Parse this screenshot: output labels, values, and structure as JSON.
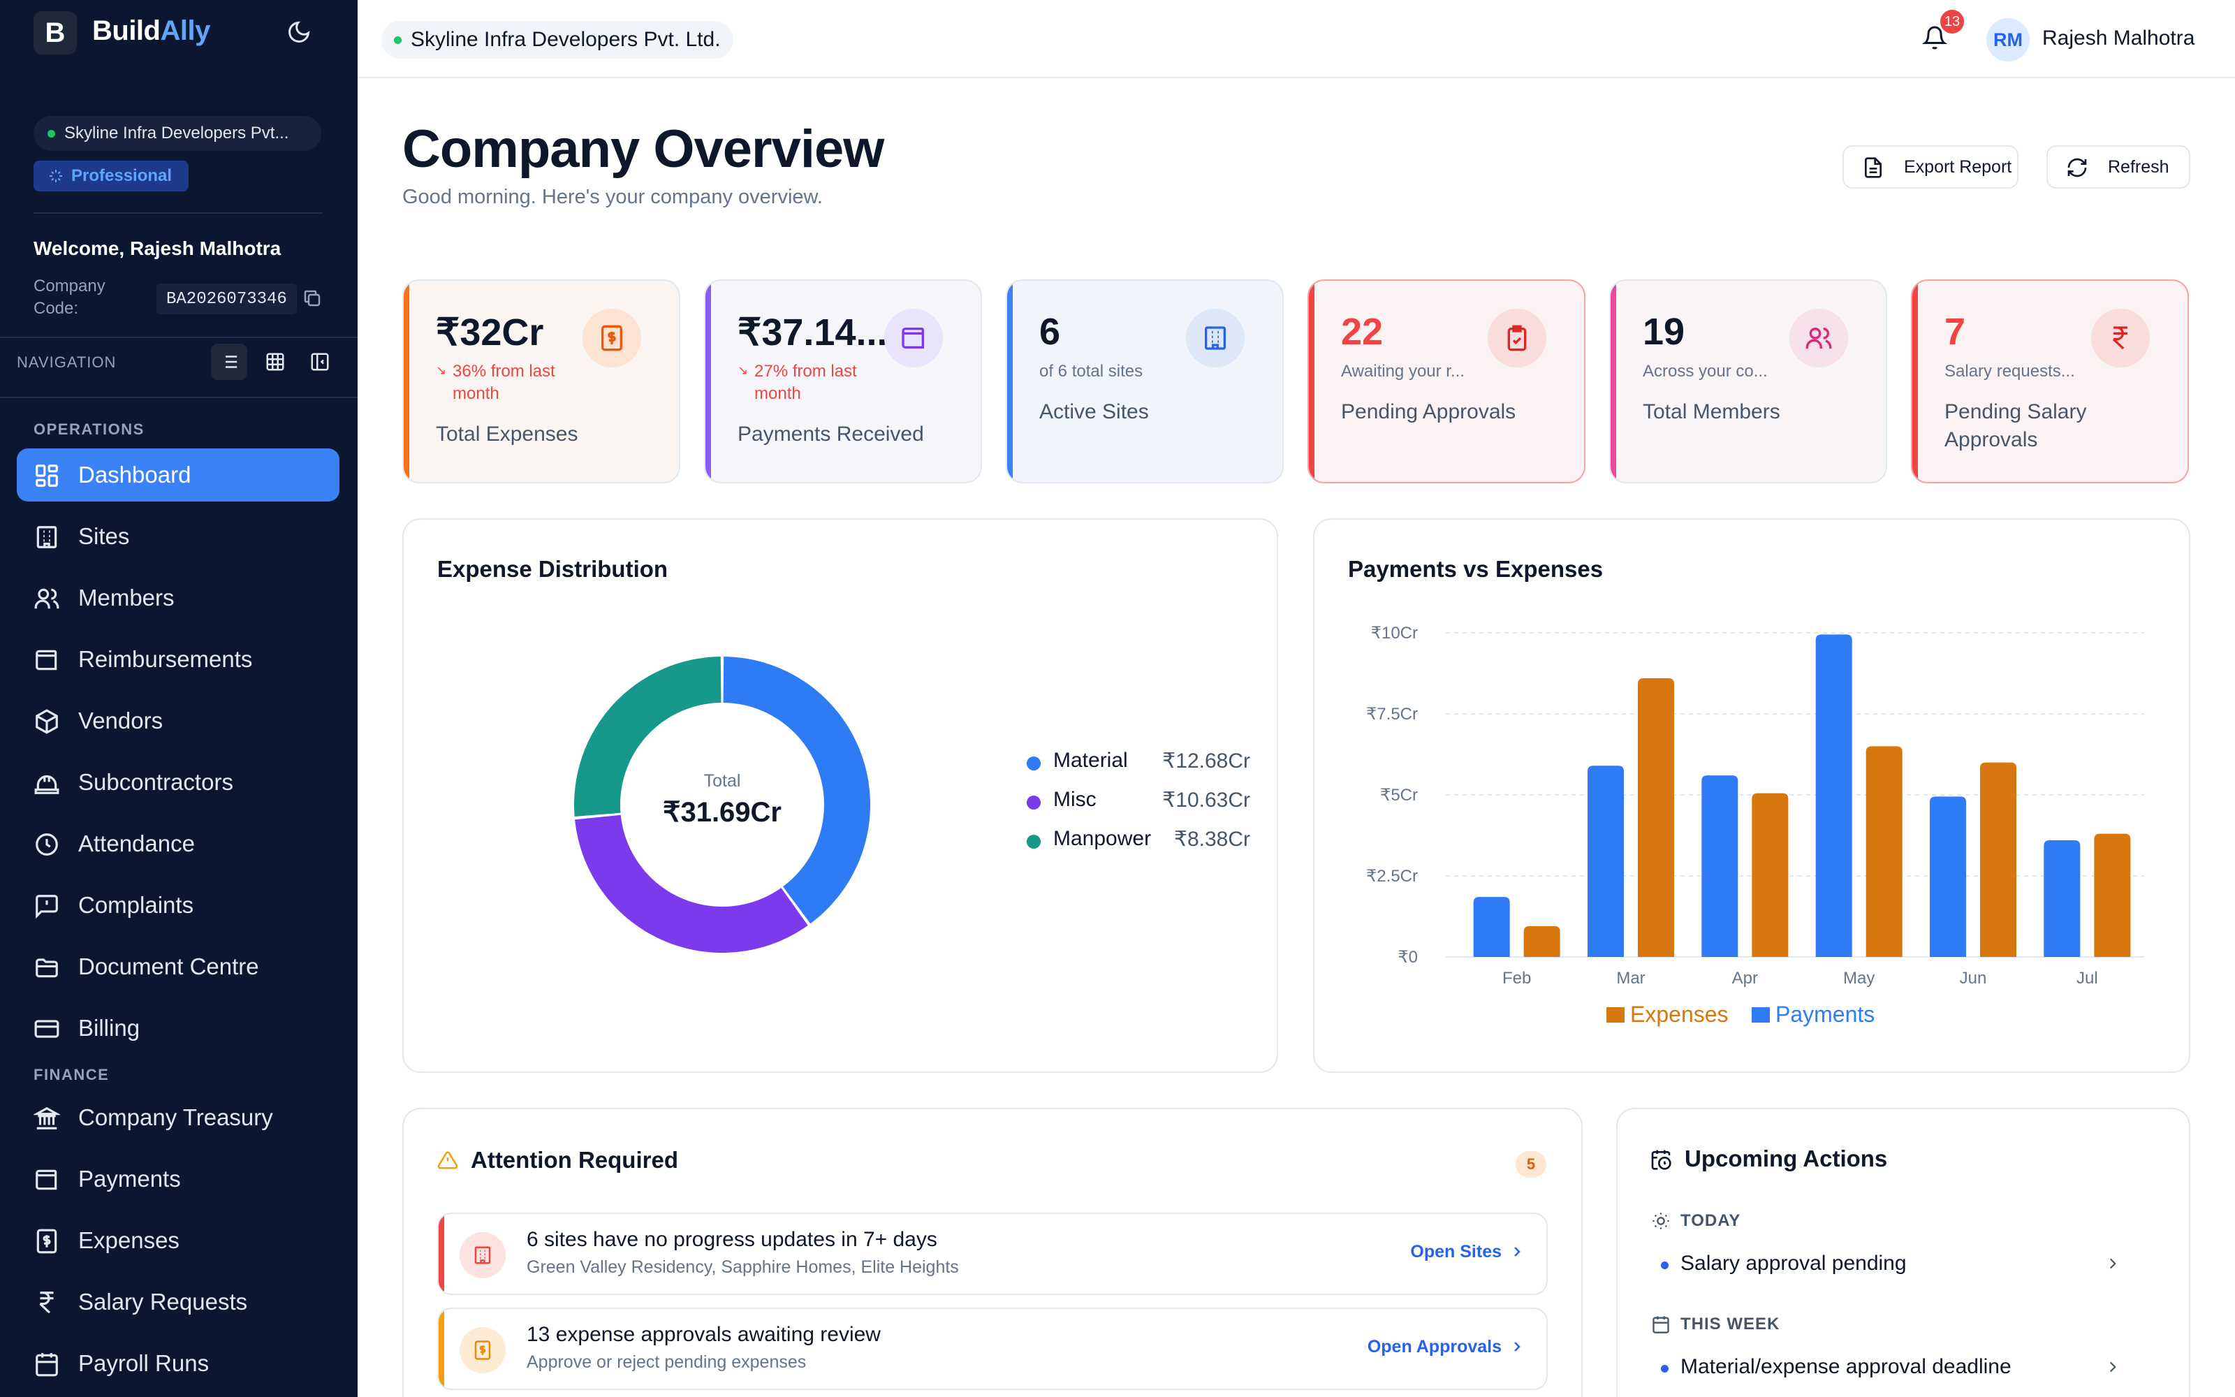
{
  "app": {
    "brand_first": "Build",
    "brand_second": "Ally",
    "logo_letter": "B"
  },
  "sidebar": {
    "company": "Skyline Infra Developers Pvt...",
    "plan": "Professional",
    "welcome": "Welcome, Rajesh Malhotra",
    "company_code_label": "Company Code:",
    "company_code": "BA2026073346",
    "nav_title": "NAVIGATION",
    "sections": {
      "operations": "OPERATIONS",
      "finance": "FINANCE"
    },
    "items": [
      {
        "label": "Dashboard",
        "icon": "dashboard-icon",
        "active": true
      },
      {
        "label": "Sites",
        "icon": "building-icon"
      },
      {
        "label": "Members",
        "icon": "users-icon"
      },
      {
        "label": "Reimbursements",
        "icon": "wallet-icon"
      },
      {
        "label": "Vendors",
        "icon": "box-icon"
      },
      {
        "label": "Subcontractors",
        "icon": "hardhat-icon"
      },
      {
        "label": "Attendance",
        "icon": "clock-icon"
      },
      {
        "label": "Complaints",
        "icon": "message-alert-icon"
      },
      {
        "label": "Document Centre",
        "icon": "folder-icon"
      },
      {
        "label": "Billing",
        "icon": "credit-card-icon"
      },
      {
        "label": "Company Treasury",
        "icon": "bank-icon"
      },
      {
        "label": "Payments",
        "icon": "wallet-icon"
      },
      {
        "label": "Expenses",
        "icon": "receipt-dollar-icon"
      },
      {
        "label": "Salary Requests",
        "icon": "rupee-icon"
      },
      {
        "label": "Payroll Runs",
        "icon": "calendar-icon"
      }
    ]
  },
  "topbar": {
    "company": "Skyline Infra Developers Pvt. Ltd.",
    "notifications": "13",
    "user_initials": "RM",
    "user_name": "Rajesh Malhotra"
  },
  "header": {
    "title": "Company Overview",
    "subtitle": "Good morning. Here's your company overview.",
    "export_label": "Export Report",
    "refresh_label": "Refresh"
  },
  "stats": [
    {
      "value": "₹32Cr",
      "trend": "36% from last month",
      "label": "Total Expenses",
      "accent": "#f97316"
    },
    {
      "value": "₹37.14...",
      "trend": "27% from last month",
      "label": "Payments Received",
      "accent": "#8b5cf6"
    },
    {
      "value": "6",
      "sub": "of 6 total sites",
      "label": "Active Sites",
      "accent": "#3b82f6"
    },
    {
      "value": "22",
      "sub": "Awaiting your r...",
      "label": "Pending Approvals",
      "accent": "#ef4444"
    },
    {
      "value": "19",
      "sub": "Across your co...",
      "label": "Total Members",
      "accent": "#ec4899"
    },
    {
      "value": "7",
      "sub": "Salary requests...",
      "label": "Pending Salary Approvals",
      "accent": "#ef4444"
    }
  ],
  "expense_distribution": {
    "title": "Expense Distribution",
    "center_label": "Total",
    "center_value": "₹31.69Cr",
    "legend": [
      {
        "name": "Material",
        "display": "₹12.68Cr"
      },
      {
        "name": "Misc",
        "display": "₹10.63Cr"
      },
      {
        "name": "Manpower",
        "display": "₹8.38Cr"
      }
    ]
  },
  "payments_chart": {
    "title": "Payments vs Expenses"
  },
  "chart_data": [
    {
      "type": "pie",
      "categories": [
        "Material",
        "Misc",
        "Manpower"
      ],
      "values": [
        12.68,
        10.63,
        8.38
      ],
      "unit": "₹Cr",
      "colors": [
        "#2f7bf5",
        "#7c3aed",
        "#16998a"
      ]
    },
    {
      "type": "bar",
      "categories": [
        "Feb",
        "Mar",
        "Apr",
        "May",
        "Jun",
        "Jul"
      ],
      "series": [
        {
          "name": "Payments",
          "values": [
            1.85,
            5.9,
            5.6,
            9.95,
            4.95,
            3.6
          ],
          "color": "#2f7bf5"
        },
        {
          "name": "Expenses",
          "values": [
            0.95,
            8.6,
            5.05,
            6.5,
            6.0,
            3.8
          ],
          "color": "#d9770f"
        }
      ],
      "yticks": [
        "₹0",
        "₹2.5Cr",
        "₹5Cr",
        "₹7.5Cr",
        "₹10Cr"
      ],
      "ylim": [
        0,
        10
      ],
      "grid": true,
      "legend_position": "bottom"
    }
  ],
  "attention": {
    "title": "Attention Required",
    "count": "5",
    "items": [
      {
        "title": "6 sites have no progress updates in 7+ days",
        "subtitle": "Green Valley Residency, Sapphire Homes, Elite Heights",
        "link": "Open Sites",
        "color": "#ef4444"
      },
      {
        "title": "13 expense approvals awaiting review",
        "subtitle": "Approve or reject pending expenses",
        "link": "Open Approvals",
        "color": "#f59e0b"
      }
    ]
  },
  "upcoming": {
    "title": "Upcoming Actions",
    "today_label": "TODAY",
    "today_item": "Salary approval pending",
    "week_label": "THIS WEEK",
    "week_item": "Material/expense approval deadline"
  }
}
